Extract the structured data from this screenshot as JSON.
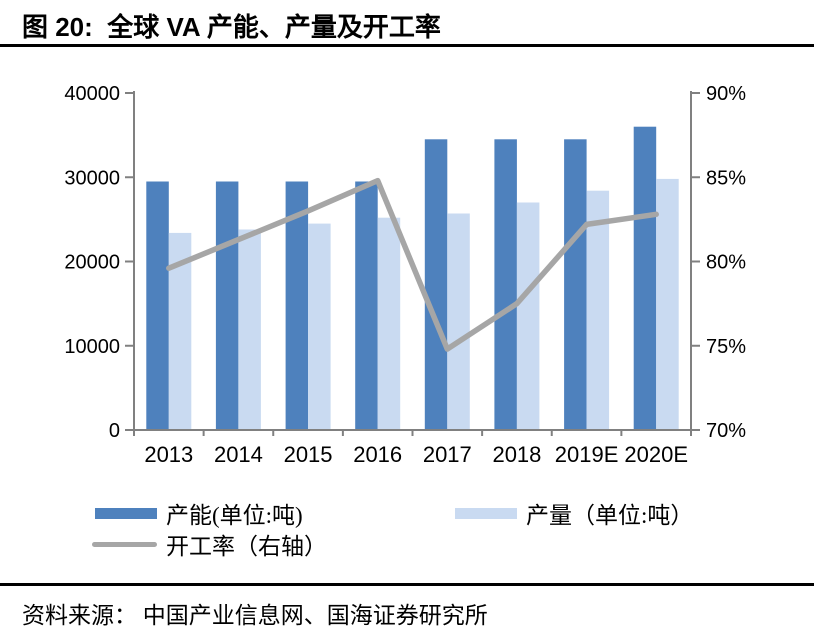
{
  "figure": {
    "title": "图 20:  全球 VA 产能、产量及开工率",
    "source": "资料来源： 中国产业信息网、国海证券研究所"
  },
  "colors": {
    "capacity_bar": "#4E81BD",
    "output_bar": "#C9DAF1",
    "rate_line": "#A6A6A6",
    "axis": "#808080",
    "text": "#000000"
  },
  "legend": {
    "items": [
      {
        "id": "capacity",
        "label": "产能(单位:吨)",
        "swatch": "bar",
        "color": "#4E81BD"
      },
      {
        "id": "output",
        "label": "产量（单位:吨）",
        "swatch": "bar",
        "color": "#C9DAF1"
      },
      {
        "id": "rate",
        "label": "开工率（右轴）",
        "swatch": "line",
        "color": "#A6A6A6"
      }
    ]
  },
  "chart_data": {
    "type": "bar+line",
    "title": "全球 VA 产能、产量及开工率",
    "categories": [
      "2013",
      "2014",
      "2015",
      "2016",
      "2017",
      "2018",
      "2019E",
      "2020E"
    ],
    "series": [
      {
        "name": "产能(单位:吨)",
        "type": "bar",
        "axis": "left",
        "color": "#4E81BD",
        "values": [
          29500,
          29500,
          29500,
          29500,
          34500,
          34500,
          34500,
          36000
        ]
      },
      {
        "name": "产量（单位:吨）",
        "type": "bar",
        "axis": "left",
        "color": "#C9DAF1",
        "values": [
          23400,
          23800,
          24500,
          25200,
          25700,
          27000,
          28400,
          29800
        ]
      },
      {
        "name": "开工率（右轴）",
        "type": "line",
        "axis": "right",
        "color": "#A6A6A6",
        "values": [
          79.6,
          81.3,
          83.0,
          84.8,
          74.8,
          77.5,
          82.2,
          82.8
        ]
      }
    ],
    "left_axis": {
      "min": 0,
      "max": 40000,
      "ticks": [
        0,
        10000,
        20000,
        30000,
        40000
      ],
      "tick_labels": [
        "0",
        "10000",
        "20000",
        "30000",
        "40000"
      ]
    },
    "right_axis": {
      "min": 70,
      "max": 90,
      "ticks": [
        70,
        75,
        80,
        85,
        90
      ],
      "tick_labels": [
        "70%",
        "75%",
        "80%",
        "85%",
        "90%"
      ]
    },
    "grid": false,
    "legend_position": "bottom"
  }
}
